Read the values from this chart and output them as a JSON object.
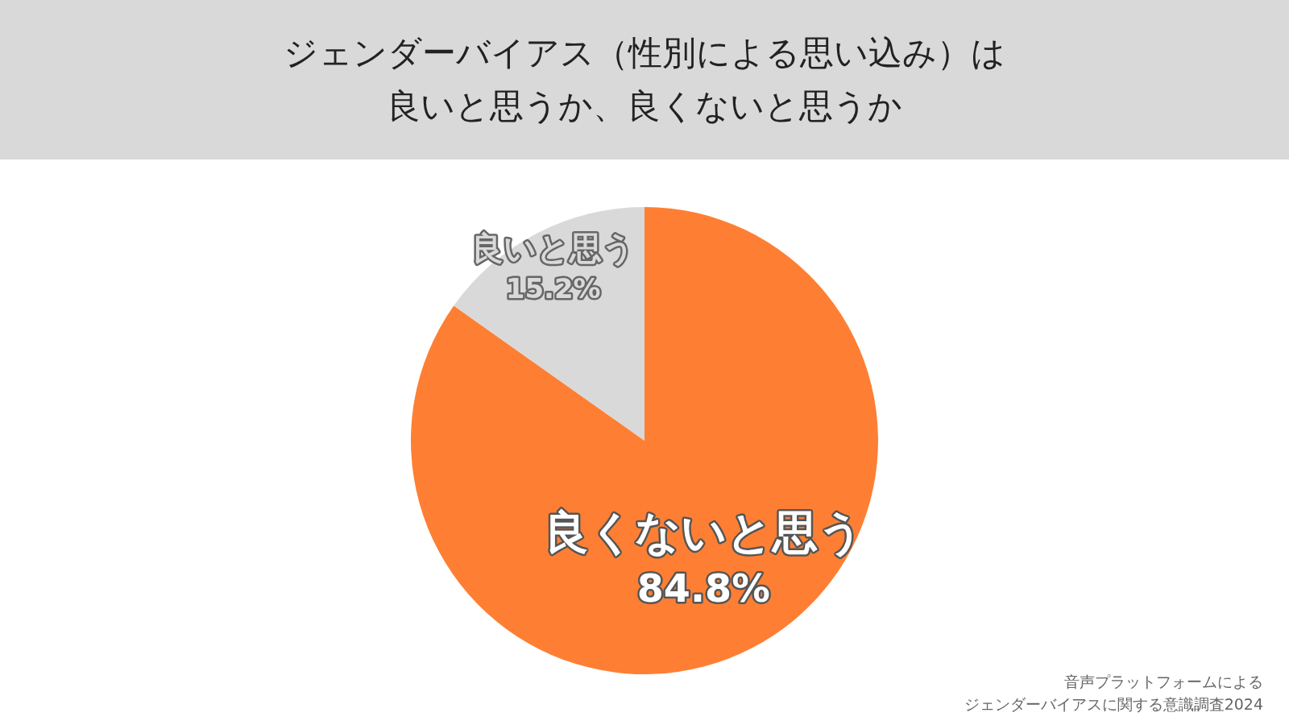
{
  "chart_data": {
    "type": "pie",
    "title": "ジェンダーバイアス（性別による思い込み）は良いと思うか、良くないと思うか",
    "categories": [
      "良くないと思う",
      "良いと思う"
    ],
    "values": [
      84.8,
      15.2
    ],
    "colors": [
      "#fe7f33",
      "#d9d9d9"
    ],
    "value_labels": [
      "84.8%",
      "15.2%"
    ],
    "annotations": [
      "音声プラットフォームによる",
      "ジェンダーバイアスに関する意識調査2024"
    ]
  }
}
